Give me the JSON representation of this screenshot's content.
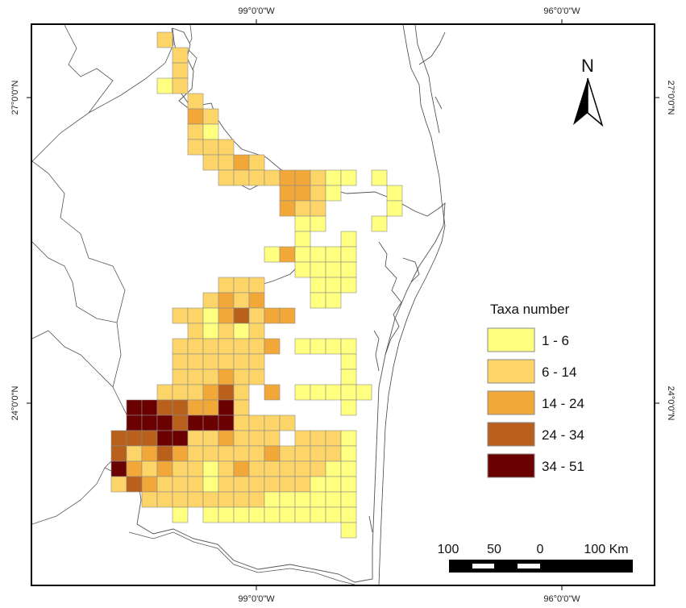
{
  "graticule": {
    "top_labels": [
      "99°0'0\"W",
      "96°0'0\"W"
    ],
    "bottom_labels": [
      "99°0'0\"W",
      "96°0'0\"W"
    ],
    "left_labels": [
      "27°0'0\"N",
      "24°0'0\"N"
    ],
    "right_labels": [
      "27°0'0\"N",
      "24°0'0\"N"
    ]
  },
  "north_arrow": {
    "label": "N"
  },
  "legend": {
    "title": "Taxa number",
    "classes": [
      {
        "label": "1 - 6",
        "color": "#ffff80"
      },
      {
        "label": "6 - 14",
        "color": "#fdd468"
      },
      {
        "label": "14 - 24",
        "color": "#f2a838"
      },
      {
        "label": "24 - 34",
        "color": "#b8601c"
      },
      {
        "label": "34 - 51",
        "color": "#6b0000"
      }
    ]
  },
  "scale_bar": {
    "labels": [
      "100",
      "50",
      "0",
      "100 Km"
    ]
  },
  "grid_cells": {
    "description_rows": [
      {
        "r": 0,
        "c": [
          [
            10,
            2
          ]
        ]
      },
      {
        "r": 1,
        "c": [
          [
            11,
            2
          ]
        ]
      },
      {
        "r": 2,
        "c": [
          [
            11,
            2
          ]
        ]
      },
      {
        "r": 3,
        "c": [
          [
            10,
            1
          ],
          [
            11,
            2
          ]
        ]
      },
      {
        "r": 4,
        "c": [
          [
            12,
            2
          ]
        ]
      },
      {
        "r": 5,
        "c": [
          [
            12,
            3
          ],
          [
            13,
            2
          ]
        ]
      },
      {
        "r": 6,
        "c": [
          [
            12,
            2
          ],
          [
            13,
            1
          ]
        ]
      },
      {
        "r": 7,
        "c": [
          [
            12,
            2
          ],
          [
            13,
            2
          ],
          [
            14,
            2
          ]
        ]
      },
      {
        "r": 8,
        "c": [
          [
            13,
            2
          ],
          [
            14,
            2
          ],
          [
            15,
            3
          ],
          [
            16,
            2
          ]
        ]
      },
      {
        "r": 9,
        "c": [
          [
            14,
            2
          ],
          [
            15,
            2
          ],
          [
            16,
            2
          ],
          [
            17,
            2
          ],
          [
            18,
            3
          ],
          [
            19,
            3
          ],
          [
            20,
            2
          ],
          [
            21,
            1
          ],
          [
            22,
            1
          ],
          [
            24,
            1
          ]
        ]
      },
      {
        "r": 10,
        "c": [
          [
            18,
            3
          ],
          [
            19,
            3
          ],
          [
            20,
            2
          ],
          [
            21,
            1
          ],
          [
            25,
            1
          ]
        ]
      },
      {
        "r": 11,
        "c": [
          [
            18,
            3
          ],
          [
            19,
            2
          ],
          [
            20,
            2
          ],
          [
            25,
            1
          ]
        ]
      },
      {
        "r": 12,
        "c": [
          [
            19,
            1
          ],
          [
            20,
            1
          ],
          [
            24,
            1
          ]
        ]
      },
      {
        "r": 13,
        "c": [
          [
            19,
            1
          ],
          [
            22,
            1
          ]
        ]
      },
      {
        "r": 14,
        "c": [
          [
            17,
            1
          ],
          [
            18,
            3
          ],
          [
            19,
            1
          ],
          [
            20,
            1
          ],
          [
            21,
            1
          ],
          [
            22,
            1
          ]
        ]
      },
      {
        "r": 15,
        "c": [
          [
            19,
            1
          ],
          [
            20,
            1
          ],
          [
            21,
            1
          ],
          [
            22,
            1
          ]
        ]
      },
      {
        "r": 16,
        "c": [
          [
            14,
            2
          ],
          [
            15,
            2
          ],
          [
            16,
            2
          ],
          [
            20,
            1
          ],
          [
            21,
            1
          ],
          [
            22,
            1
          ]
        ]
      },
      {
        "r": 17,
        "c": [
          [
            13,
            2
          ],
          [
            14,
            3
          ],
          [
            15,
            2
          ],
          [
            16,
            3
          ],
          [
            20,
            1
          ],
          [
            21,
            1
          ]
        ]
      },
      {
        "r": 18,
        "c": [
          [
            11,
            2
          ],
          [
            12,
            2
          ],
          [
            13,
            1
          ],
          [
            14,
            3
          ],
          [
            15,
            4
          ],
          [
            16,
            2
          ],
          [
            17,
            3
          ],
          [
            18,
            3
          ]
        ]
      },
      {
        "r": 19,
        "c": [
          [
            12,
            2
          ],
          [
            13,
            1
          ],
          [
            14,
            2
          ],
          [
            15,
            1
          ],
          [
            16,
            2
          ]
        ]
      },
      {
        "r": 20,
        "c": [
          [
            11,
            2
          ],
          [
            12,
            2
          ],
          [
            13,
            2
          ],
          [
            14,
            2
          ],
          [
            15,
            2
          ],
          [
            16,
            2
          ],
          [
            17,
            3
          ],
          [
            19,
            1
          ],
          [
            20,
            1
          ],
          [
            21,
            1
          ],
          [
            22,
            1
          ]
        ]
      },
      {
        "r": 21,
        "c": [
          [
            11,
            2
          ],
          [
            12,
            2
          ],
          [
            13,
            2
          ],
          [
            14,
            2
          ],
          [
            15,
            2
          ],
          [
            16,
            2
          ],
          [
            22,
            1
          ]
        ]
      },
      {
        "r": 22,
        "c": [
          [
            11,
            2
          ],
          [
            12,
            2
          ],
          [
            13,
            2
          ],
          [
            14,
            3
          ],
          [
            15,
            2
          ],
          [
            16,
            2
          ],
          [
            22,
            1
          ]
        ]
      },
      {
        "r": 23,
        "c": [
          [
            10,
            2
          ],
          [
            11,
            2
          ],
          [
            12,
            2
          ],
          [
            13,
            3
          ],
          [
            14,
            4
          ],
          [
            15,
            2
          ],
          [
            17,
            3
          ],
          [
            19,
            1
          ],
          [
            20,
            1
          ],
          [
            21,
            1
          ],
          [
            22,
            1
          ],
          [
            23,
            1
          ]
        ]
      },
      {
        "r": 24,
        "c": [
          [
            8,
            5
          ],
          [
            9,
            5
          ],
          [
            10,
            4
          ],
          [
            11,
            4
          ],
          [
            12,
            3
          ],
          [
            13,
            3
          ],
          [
            14,
            5
          ],
          [
            15,
            2
          ],
          [
            22,
            1
          ]
        ]
      },
      {
        "r": 25,
        "c": [
          [
            8,
            5
          ],
          [
            9,
            5
          ],
          [
            10,
            5
          ],
          [
            11,
            4
          ],
          [
            12,
            5
          ],
          [
            13,
            5
          ],
          [
            14,
            5
          ],
          [
            15,
            2
          ],
          [
            16,
            2
          ],
          [
            17,
            2
          ],
          [
            18,
            2
          ]
        ]
      },
      {
        "r": 26,
        "c": [
          [
            7,
            4
          ],
          [
            8,
            4
          ],
          [
            9,
            4
          ],
          [
            10,
            5
          ],
          [
            11,
            5
          ],
          [
            12,
            2
          ],
          [
            13,
            2
          ],
          [
            14,
            3
          ],
          [
            15,
            2
          ],
          [
            16,
            2
          ],
          [
            17,
            2
          ],
          [
            19,
            2
          ],
          [
            20,
            2
          ],
          [
            21,
            2
          ],
          [
            22,
            1
          ]
        ]
      },
      {
        "r": 27,
        "c": [
          [
            7,
            4
          ],
          [
            8,
            2
          ],
          [
            9,
            3
          ],
          [
            10,
            4
          ],
          [
            11,
            3
          ],
          [
            12,
            2
          ],
          [
            13,
            2
          ],
          [
            14,
            2
          ],
          [
            15,
            2
          ],
          [
            16,
            2
          ],
          [
            17,
            3
          ],
          [
            18,
            2
          ],
          [
            19,
            2
          ],
          [
            20,
            2
          ],
          [
            21,
            2
          ],
          [
            22,
            1
          ]
        ]
      },
      {
        "r": 28,
        "c": [
          [
            7,
            5
          ],
          [
            8,
            3
          ],
          [
            9,
            2
          ],
          [
            10,
            3
          ],
          [
            11,
            2
          ],
          [
            12,
            2
          ],
          [
            13,
            1
          ],
          [
            14,
            2
          ],
          [
            15,
            3
          ],
          [
            16,
            2
          ],
          [
            17,
            2
          ],
          [
            18,
            2
          ],
          [
            19,
            2
          ],
          [
            20,
            2
          ],
          [
            21,
            1
          ],
          [
            22,
            1
          ]
        ]
      },
      {
        "r": 29,
        "c": [
          [
            7,
            2
          ],
          [
            8,
            4
          ],
          [
            9,
            3
          ],
          [
            10,
            2
          ],
          [
            11,
            2
          ],
          [
            12,
            2
          ],
          [
            13,
            1
          ],
          [
            14,
            2
          ],
          [
            15,
            2
          ],
          [
            16,
            2
          ],
          [
            17,
            2
          ],
          [
            18,
            2
          ],
          [
            19,
            2
          ],
          [
            20,
            1
          ],
          [
            21,
            1
          ],
          [
            22,
            1
          ]
        ]
      },
      {
        "r": 30,
        "c": [
          [
            9,
            2
          ],
          [
            10,
            2
          ],
          [
            11,
            2
          ],
          [
            12,
            2
          ],
          [
            13,
            2
          ],
          [
            14,
            2
          ],
          [
            15,
            2
          ],
          [
            16,
            2
          ],
          [
            17,
            1
          ],
          [
            18,
            1
          ],
          [
            19,
            1
          ],
          [
            20,
            1
          ],
          [
            21,
            1
          ],
          [
            22,
            1
          ]
        ]
      },
      {
        "r": 31,
        "c": [
          [
            11,
            1
          ],
          [
            13,
            1
          ],
          [
            14,
            1
          ],
          [
            15,
            1
          ],
          [
            16,
            1
          ],
          [
            17,
            1
          ],
          [
            18,
            1
          ],
          [
            19,
            1
          ],
          [
            20,
            1
          ],
          [
            21,
            1
          ],
          [
            22,
            1
          ]
        ]
      },
      {
        "r": 32,
        "c": [
          [
            22,
            1
          ]
        ]
      }
    ]
  }
}
